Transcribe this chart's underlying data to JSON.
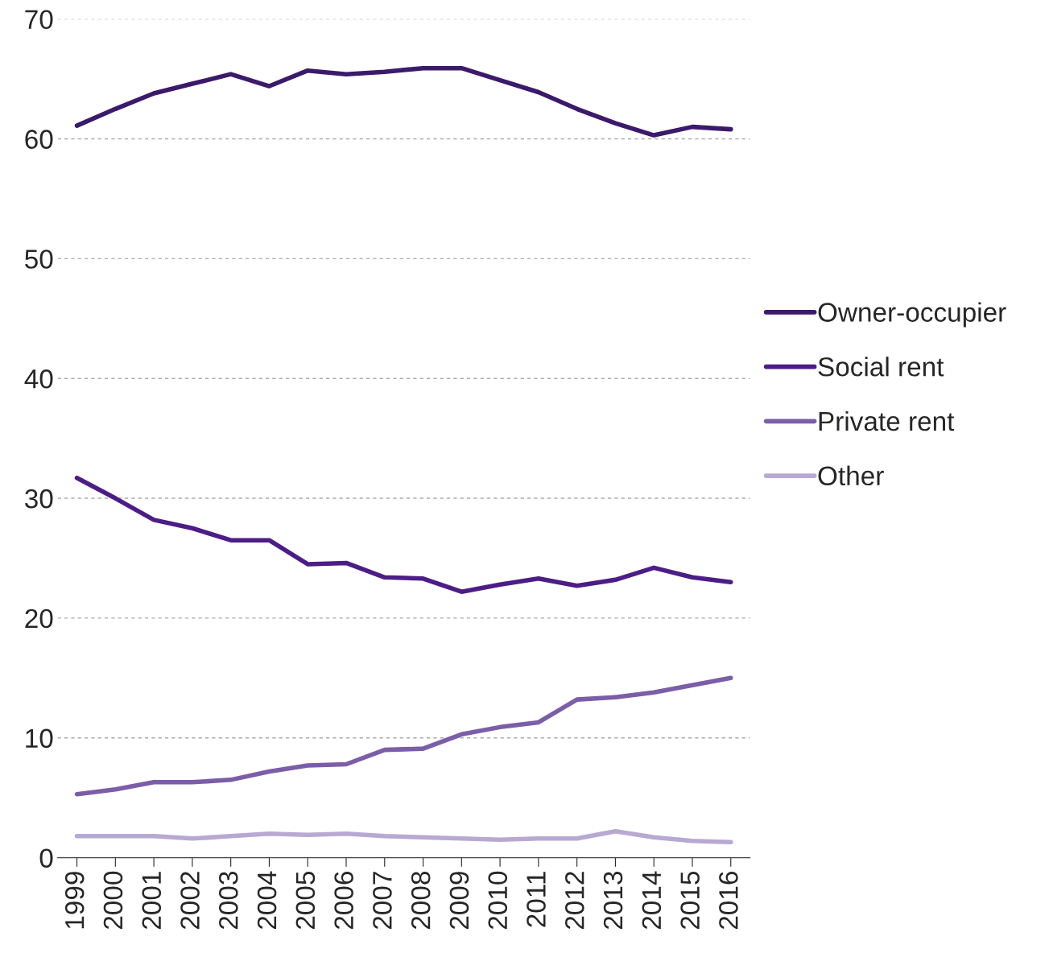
{
  "chart_data": {
    "type": "line",
    "categories": [
      "1999",
      "2000",
      "2001",
      "2002",
      "2003",
      "2004",
      "2005",
      "2006",
      "2007",
      "2008",
      "2009",
      "2010",
      "2011",
      "2012",
      "2013",
      "2014",
      "2015",
      "2016"
    ],
    "series": [
      {
        "name": "Owner-occupier",
        "color": "#3b1a6b",
        "values": [
          61.1,
          62.5,
          63.8,
          64.6,
          65.4,
          64.4,
          65.7,
          65.4,
          65.6,
          65.9,
          65.9,
          64.9,
          63.9,
          62.5,
          61.3,
          60.3,
          61.0,
          60.8
        ]
      },
      {
        "name": "Social rent",
        "color": "#4c1d87",
        "values": [
          31.7,
          30.0,
          28.2,
          27.5,
          26.5,
          26.5,
          24.5,
          24.6,
          23.4,
          23.3,
          22.2,
          22.8,
          23.3,
          22.7,
          23.2,
          24.2,
          23.4,
          23.0
        ]
      },
      {
        "name": "Private rent",
        "color": "#7b5ea7",
        "values": [
          5.3,
          5.7,
          6.3,
          6.3,
          6.5,
          7.2,
          7.7,
          7.8,
          9.0,
          9.1,
          10.3,
          10.9,
          11.3,
          13.2,
          13.4,
          13.8,
          14.4,
          15.0
        ]
      },
      {
        "name": "Other",
        "color": "#b8a9d3",
        "values": [
          1.8,
          1.8,
          1.8,
          1.6,
          1.8,
          2.0,
          1.9,
          2.0,
          1.8,
          1.7,
          1.6,
          1.5,
          1.6,
          1.6,
          2.2,
          1.7,
          1.4,
          1.3
        ]
      }
    ],
    "ylim": [
      0,
      70
    ],
    "yticks": [
      0,
      10,
      20,
      30,
      40,
      50,
      60,
      70
    ],
    "grid": "y",
    "legend": "right",
    "marker": "none",
    "line_style": "solid"
  }
}
